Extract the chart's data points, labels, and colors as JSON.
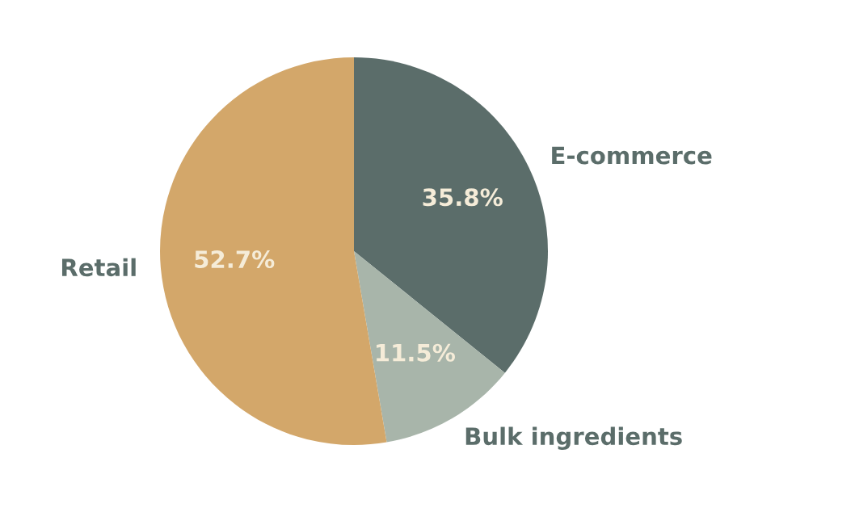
{
  "chart_data": {
    "type": "pie",
    "categories": [
      "E-commerce",
      "Bulk ingredients",
      "Retail"
    ],
    "values": [
      35.8,
      11.5,
      52.7
    ],
    "colors": [
      "#5b6d6a",
      "#a8b5aa",
      "#d3a76a"
    ],
    "value_labels": [
      "35.8%",
      "11.5%",
      "52.7%"
    ],
    "legend": false
  }
}
